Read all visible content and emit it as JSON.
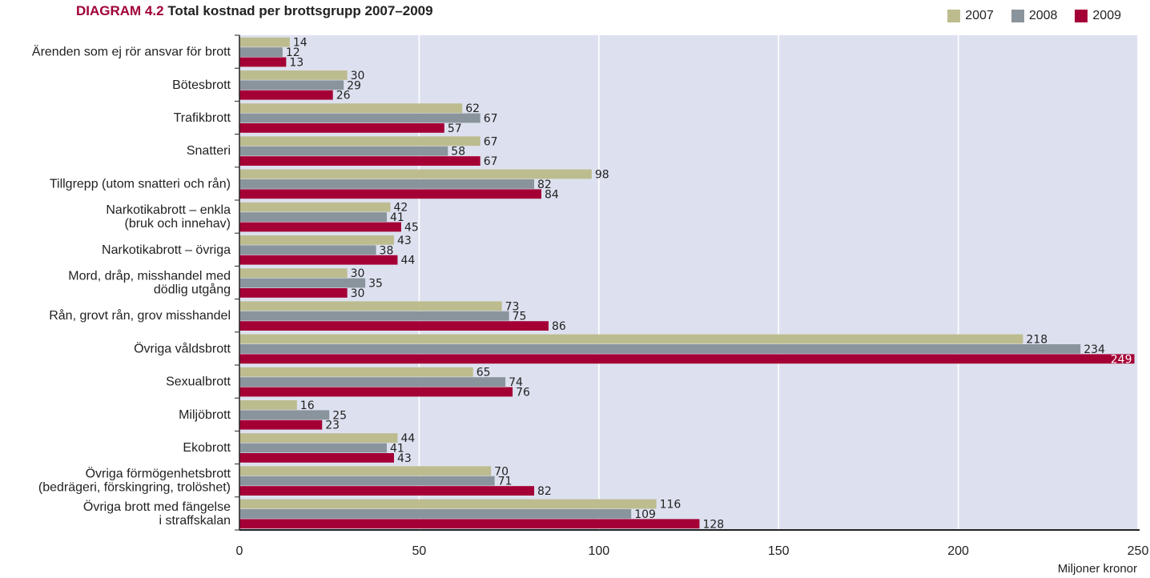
{
  "title": {
    "tag": "DIAGRAM 4.2",
    "text": "Total kostnad per brottsgrupp 2007–2009"
  },
  "unit_label": "Miljoner kronor",
  "chart_data": {
    "type": "bar",
    "orientation": "horizontal",
    "title": "DIAGRAM 4.2 Total kostnad per brottsgrupp 2007–2009",
    "xlabel": "Miljoner kronor",
    "ylabel": "",
    "xlim": [
      0,
      250
    ],
    "xticks": [
      0,
      50,
      100,
      150,
      200,
      250
    ],
    "grid": true,
    "legend_position": "top-right",
    "categories": [
      [
        "Ärenden som ej rör ansvar för brott"
      ],
      [
        "Bötesbrott"
      ],
      [
        "Trafikbrott"
      ],
      [
        "Snatteri"
      ],
      [
        "Tillgrepp (utom snatteri och rån)"
      ],
      [
        "Narkotikabrott – enkla",
        "(bruk och innehav)"
      ],
      [
        "Narkotikabrott – övriga"
      ],
      [
        "Mord, dråp, misshandel med",
        "dödlig utgång"
      ],
      [
        "Rån, grovt rån, grov misshandel"
      ],
      [
        "Övriga våldsbrott"
      ],
      [
        "Sexualbrott"
      ],
      [
        "Miljöbrott"
      ],
      [
        "Ekobrott"
      ],
      [
        "Övriga förmögenhetsbrott",
        "(bedrägeri, förskingring, trolöshet)"
      ],
      [
        "Övriga brott med fängelse",
        "i straffskalan"
      ]
    ],
    "series": [
      {
        "name": "2007",
        "color": "#bdbc8f",
        "values": [
          14,
          30,
          62,
          67,
          98,
          42,
          43,
          30,
          73,
          218,
          65,
          16,
          44,
          70,
          116
        ]
      },
      {
        "name": "2008",
        "color": "#8a949c",
        "values": [
          12,
          29,
          67,
          58,
          82,
          41,
          38,
          35,
          75,
          234,
          74,
          25,
          41,
          71,
          109
        ]
      },
      {
        "name": "2009",
        "color": "#a50036",
        "values": [
          13,
          26,
          57,
          67,
          84,
          45,
          44,
          30,
          86,
          249,
          76,
          23,
          43,
          82,
          128
        ]
      }
    ]
  }
}
